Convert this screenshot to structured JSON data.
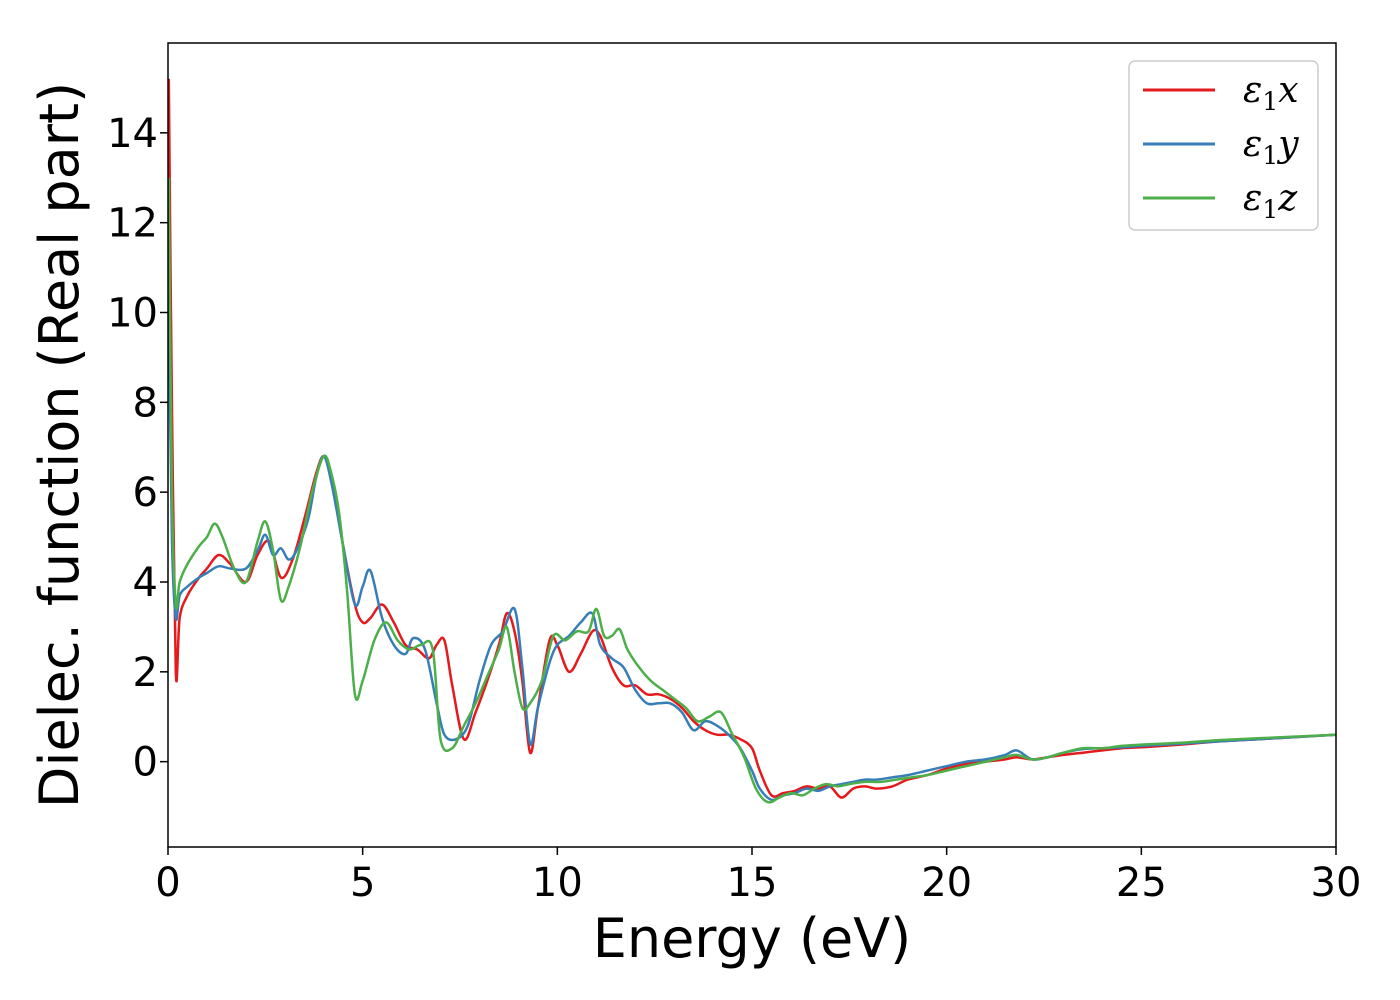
{
  "chart_data": {
    "type": "line",
    "xlabel": "Energy (eV)",
    "ylabel": "Dielec. function (Real part)",
    "xlim": [
      0,
      30
    ],
    "ylim": [
      -1.9,
      16
    ],
    "xticks": [
      0,
      5,
      10,
      15,
      20,
      25,
      30
    ],
    "xtick_labels": [
      "0",
      "5",
      "10",
      "15",
      "20",
      "25",
      "30"
    ],
    "yticks": [
      0,
      2,
      4,
      6,
      8,
      10,
      12,
      14
    ],
    "ytick_labels": [
      "0",
      "2",
      "4",
      "6",
      "8",
      "10",
      "12",
      "14"
    ],
    "grid": false,
    "legend_position": "top-right",
    "series": [
      {
        "name": "ε₁x",
        "legend": {
          "base": "ε",
          "sub": "1",
          "axis": "x"
        },
        "color": "#e41a1c",
        "x": [
          0.02,
          0.1,
          0.2,
          0.3,
          0.5,
          0.8,
          1.0,
          1.3,
          1.6,
          2.0,
          2.3,
          2.6,
          2.9,
          3.2,
          3.5,
          3.8,
          4.0,
          4.2,
          4.5,
          4.8,
          5.0,
          5.2,
          5.5,
          5.8,
          6.1,
          6.4,
          6.7,
          6.9,
          7.1,
          7.3,
          7.6,
          7.9,
          8.2,
          8.5,
          8.7,
          8.9,
          9.1,
          9.3,
          9.5,
          9.8,
          10.0,
          10.3,
          10.6,
          10.9,
          11.1,
          11.4,
          11.7,
          12.0,
          12.3,
          12.6,
          12.9,
          13.2,
          13.5,
          13.8,
          14.1,
          14.4,
          14.7,
          15.0,
          15.2,
          15.5,
          15.8,
          16.1,
          16.4,
          16.7,
          17.0,
          17.3,
          17.6,
          17.9,
          18.2,
          18.6,
          19.0,
          19.5,
          20.0,
          20.5,
          21.0,
          21.5,
          21.8,
          22.2,
          22.6,
          23.0,
          23.5,
          24.0,
          24.5,
          25.0,
          26.0,
          27.0,
          28.0,
          29.0,
          30.0
        ],
        "y": [
          15.2,
          8.0,
          2.0,
          3.2,
          3.7,
          4.1,
          4.3,
          4.6,
          4.4,
          4.0,
          4.6,
          4.9,
          4.1,
          4.5,
          5.4,
          6.4,
          6.8,
          6.3,
          4.8,
          3.5,
          3.1,
          3.2,
          3.5,
          3.1,
          2.6,
          2.5,
          2.3,
          2.6,
          2.7,
          1.7,
          0.5,
          1.1,
          1.8,
          2.6,
          3.3,
          2.9,
          1.8,
          0.2,
          1.2,
          2.7,
          2.6,
          2.0,
          2.4,
          2.9,
          2.8,
          2.1,
          1.7,
          1.7,
          1.5,
          1.5,
          1.4,
          1.2,
          0.9,
          0.7,
          0.6,
          0.6,
          0.5,
          0.3,
          -0.2,
          -0.75,
          -0.7,
          -0.65,
          -0.55,
          -0.6,
          -0.55,
          -0.8,
          -0.6,
          -0.55,
          -0.6,
          -0.55,
          -0.4,
          -0.3,
          -0.15,
          -0.05,
          0.0,
          0.05,
          0.1,
          0.05,
          0.1,
          0.15,
          0.2,
          0.25,
          0.3,
          0.32,
          0.38,
          0.45,
          0.5,
          0.55,
          0.6
        ]
      },
      {
        "name": "ε₁y",
        "legend": {
          "base": "ε",
          "sub": "1",
          "axis": "y"
        },
        "color": "#377eb8",
        "x": [
          0.02,
          0.1,
          0.2,
          0.3,
          0.5,
          0.8,
          1.0,
          1.3,
          1.6,
          2.0,
          2.3,
          2.5,
          2.7,
          2.9,
          3.1,
          3.3,
          3.6,
          3.8,
          4.0,
          4.2,
          4.5,
          4.8,
          5.0,
          5.2,
          5.5,
          5.8,
          6.1,
          6.3,
          6.6,
          6.9,
          7.1,
          7.4,
          7.7,
          8.0,
          8.3,
          8.6,
          8.9,
          9.1,
          9.3,
          9.5,
          9.8,
          10.0,
          10.3,
          10.6,
          10.9,
          11.1,
          11.4,
          11.7,
          12.0,
          12.3,
          12.6,
          12.9,
          13.2,
          13.5,
          13.8,
          14.1,
          14.4,
          14.7,
          15.0,
          15.2,
          15.5,
          15.8,
          16.1,
          16.4,
          16.7,
          17.0,
          17.3,
          17.6,
          17.9,
          18.2,
          18.6,
          19.0,
          19.5,
          20.0,
          20.5,
          21.0,
          21.5,
          21.8,
          22.2,
          22.6,
          23.0,
          23.5,
          24.0,
          24.5,
          25.0,
          26.0,
          27.0,
          28.0,
          29.0,
          30.0
        ],
        "y": [
          10.5,
          5.0,
          3.2,
          3.7,
          3.9,
          4.1,
          4.2,
          4.35,
          4.3,
          4.3,
          4.7,
          5.05,
          4.6,
          4.75,
          4.5,
          4.7,
          5.4,
          6.3,
          6.8,
          6.2,
          4.8,
          3.5,
          3.9,
          4.25,
          3.2,
          2.6,
          2.4,
          2.75,
          2.5,
          1.3,
          0.6,
          0.5,
          0.8,
          1.8,
          2.6,
          2.9,
          3.4,
          2.1,
          0.4,
          1.2,
          2.2,
          2.6,
          2.8,
          3.1,
          3.3,
          2.6,
          2.3,
          2.1,
          1.6,
          1.3,
          1.3,
          1.3,
          1.1,
          0.7,
          0.9,
          0.8,
          0.6,
          0.3,
          -0.2,
          -0.6,
          -0.85,
          -0.75,
          -0.7,
          -0.6,
          -0.65,
          -0.55,
          -0.5,
          -0.45,
          -0.4,
          -0.4,
          -0.35,
          -0.3,
          -0.2,
          -0.1,
          0.0,
          0.05,
          0.15,
          0.25,
          0.05,
          0.1,
          0.2,
          0.28,
          0.3,
          0.32,
          0.35,
          0.4,
          0.45,
          0.5,
          0.55,
          0.6
        ]
      },
      {
        "name": "ε₁z",
        "legend": {
          "base": "ε",
          "sub": "1",
          "axis": "z"
        },
        "color": "#4daf4a",
        "x": [
          0.02,
          0.1,
          0.2,
          0.3,
          0.5,
          0.8,
          1.0,
          1.2,
          1.4,
          1.7,
          2.0,
          2.3,
          2.5,
          2.7,
          2.9,
          3.1,
          3.4,
          3.7,
          4.0,
          4.2,
          4.4,
          4.6,
          4.8,
          5.0,
          5.3,
          5.6,
          5.9,
          6.2,
          6.5,
          6.8,
          7.0,
          7.3,
          7.6,
          7.9,
          8.2,
          8.5,
          8.7,
          8.9,
          9.1,
          9.3,
          9.6,
          9.9,
          10.2,
          10.5,
          10.8,
          11.0,
          11.2,
          11.4,
          11.6,
          11.8,
          12.1,
          12.4,
          12.7,
          13.0,
          13.3,
          13.6,
          13.9,
          14.2,
          14.5,
          14.8,
          15.1,
          15.4,
          15.7,
          16.0,
          16.3,
          16.6,
          16.9,
          17.2,
          17.5,
          17.9,
          18.3,
          18.7,
          19.1,
          19.5,
          20.0,
          20.5,
          21.0,
          21.5,
          21.8,
          22.2,
          22.6,
          23.0,
          23.5,
          24.0,
          24.5,
          25.0,
          26.0,
          27.0,
          28.0,
          29.0,
          30.0
        ],
        "y": [
          13.0,
          6.0,
          3.5,
          4.0,
          4.4,
          4.8,
          5.0,
          5.3,
          5.0,
          4.3,
          4.0,
          4.9,
          5.35,
          4.7,
          3.6,
          3.9,
          4.8,
          6.0,
          6.8,
          6.4,
          5.5,
          3.8,
          1.5,
          1.8,
          2.7,
          3.1,
          2.7,
          2.5,
          2.6,
          2.5,
          0.5,
          0.3,
          0.8,
          1.3,
          1.9,
          2.5,
          3.0,
          2.0,
          1.2,
          1.3,
          1.8,
          2.8,
          2.7,
          2.9,
          2.9,
          3.4,
          2.8,
          2.8,
          2.95,
          2.5,
          2.1,
          1.8,
          1.6,
          1.4,
          1.2,
          0.9,
          1.0,
          1.1,
          0.6,
          0.1,
          -0.6,
          -0.9,
          -0.8,
          -0.7,
          -0.75,
          -0.6,
          -0.5,
          -0.55,
          -0.5,
          -0.45,
          -0.45,
          -0.4,
          -0.35,
          -0.3,
          -0.2,
          -0.1,
          0.0,
          0.1,
          0.15,
          0.05,
          0.1,
          0.2,
          0.3,
          0.3,
          0.35,
          0.38,
          0.42,
          0.48,
          0.52,
          0.56,
          0.6
        ]
      }
    ]
  }
}
